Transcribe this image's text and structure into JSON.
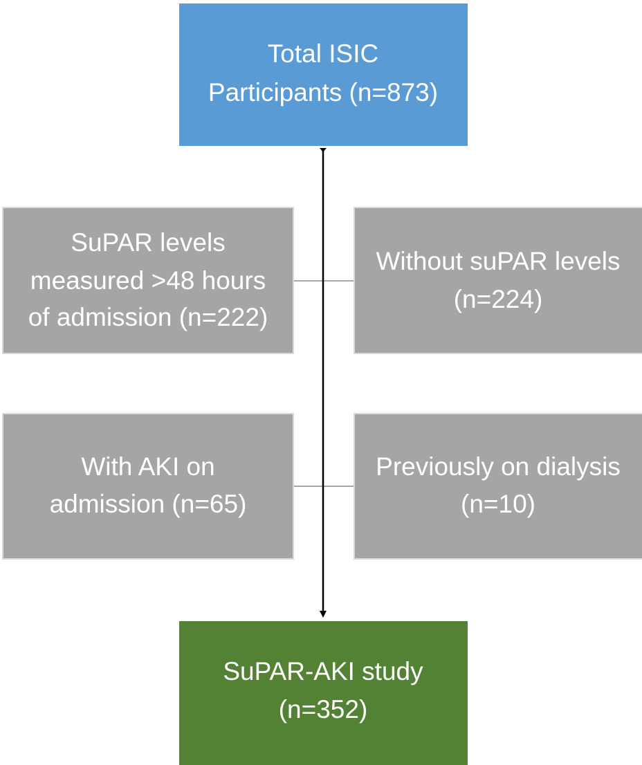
{
  "nodes": [
    {
      "lines": [
        "Total ISIC",
        "Participants (n=873)"
      ]
    },
    {
      "lines": [
        "SuPAR levels",
        "measured >48 hours",
        "of admission (n=222)"
      ]
    },
    {
      "lines": [
        "Without suPAR levels",
        "(n=224)"
      ]
    },
    {
      "lines": [
        "With AKI on",
        "admission (n=65)"
      ]
    },
    {
      "lines": [
        "Previously on dialysis",
        "(n=10)"
      ]
    },
    {
      "lines": [
        "SuPAR-AKI study",
        "(n=352)"
      ]
    }
  ]
}
